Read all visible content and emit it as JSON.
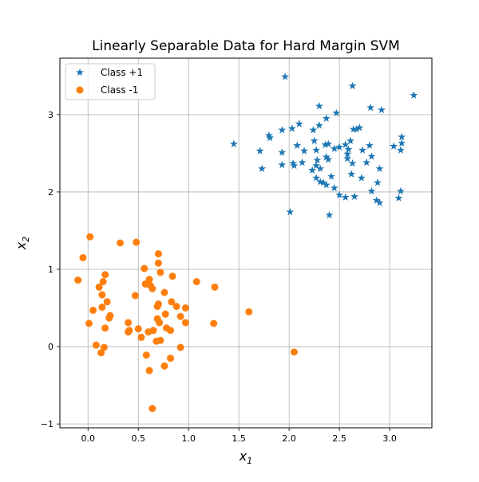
{
  "chart_data": {
    "type": "scatter",
    "title": "Linearly Separable Data for Hard Margin SVM",
    "xlabel": {
      "main": "x",
      "sub": "1"
    },
    "ylabel": {
      "main": "x",
      "sub": "2"
    },
    "xlim": [
      -0.28,
      3.42
    ],
    "ylim": [
      -1.05,
      3.73
    ],
    "xticks": [
      0.0,
      0.5,
      1.0,
      1.5,
      2.0,
      2.5,
      3.0
    ],
    "xtick_labels": [
      "0.0",
      "0.5",
      "1.0",
      "1.5",
      "2.0",
      "2.5",
      "3.0"
    ],
    "yticks": [
      -1,
      0,
      1,
      2,
      3
    ],
    "ytick_labels": [
      "−1",
      "0",
      "1",
      "2",
      "3"
    ],
    "grid": true,
    "legend_position": "top-left",
    "series": [
      {
        "name": "Class +1",
        "marker": "star",
        "color": "#1f77b4",
        "points": [
          [
            1.96,
            3.49
          ],
          [
            2.63,
            3.37
          ],
          [
            3.24,
            3.25
          ],
          [
            2.3,
            3.11
          ],
          [
            2.81,
            3.09
          ],
          [
            2.92,
            3.06
          ],
          [
            2.47,
            3.02
          ],
          [
            2.37,
            2.95
          ],
          [
            2.1,
            2.88
          ],
          [
            2.3,
            2.86
          ],
          [
            2.7,
            2.83
          ],
          [
            2.64,
            2.81
          ],
          [
            2.67,
            2.81
          ],
          [
            2.24,
            2.8
          ],
          [
            2.03,
            2.82
          ],
          [
            1.93,
            2.8
          ],
          [
            1.8,
            2.73
          ],
          [
            1.81,
            2.7
          ],
          [
            3.12,
            2.71
          ],
          [
            2.25,
            2.66
          ],
          [
            2.61,
            2.66
          ],
          [
            2.36,
            2.61
          ],
          [
            2.39,
            2.62
          ],
          [
            1.45,
            2.62
          ],
          [
            2.56,
            2.61
          ],
          [
            3.12,
            2.63
          ],
          [
            3.04,
            2.59
          ],
          [
            2.5,
            2.58
          ],
          [
            2.45,
            2.56
          ],
          [
            2.08,
            2.6
          ],
          [
            2.59,
            2.55
          ],
          [
            2.8,
            2.6
          ],
          [
            2.73,
            2.54
          ],
          [
            1.71,
            2.53
          ],
          [
            2.15,
            2.53
          ],
          [
            2.27,
            2.54
          ],
          [
            3.11,
            2.54
          ],
          [
            1.93,
            2.51
          ],
          [
            2.58,
            2.49
          ],
          [
            2.37,
            2.45
          ],
          [
            2.82,
            2.46
          ],
          [
            2.58,
            2.43
          ],
          [
            2.39,
            2.42
          ],
          [
            2.28,
            2.41
          ],
          [
            2.77,
            2.38
          ],
          [
            2.13,
            2.38
          ],
          [
            2.63,
            2.37
          ],
          [
            2.04,
            2.37
          ],
          [
            2.05,
            2.34
          ],
          [
            1.93,
            2.35
          ],
          [
            2.27,
            2.34
          ],
          [
            2.9,
            2.3
          ],
          [
            1.73,
            2.3
          ],
          [
            2.31,
            2.3
          ],
          [
            2.23,
            2.28
          ],
          [
            2.62,
            2.23
          ],
          [
            2.72,
            2.18
          ],
          [
            2.42,
            2.2
          ],
          [
            2.27,
            2.18
          ],
          [
            2.31,
            2.13
          ],
          [
            2.34,
            2.12
          ],
          [
            2.37,
            2.09
          ],
          [
            2.88,
            2.12
          ],
          [
            2.45,
            2.05
          ],
          [
            2.82,
            2.01
          ],
          [
            3.11,
            2.01
          ],
          [
            2.5,
            1.96
          ],
          [
            2.56,
            1.93
          ],
          [
            2.65,
            1.94
          ],
          [
            3.09,
            1.92
          ],
          [
            2.87,
            1.89
          ],
          [
            2.9,
            1.86
          ],
          [
            2.01,
            1.74
          ],
          [
            2.4,
            1.7
          ]
        ]
      },
      {
        "name": "Class -1",
        "marker": "circle",
        "color": "#ff7f0e",
        "points": [
          [
            0.02,
            1.42
          ],
          [
            0.48,
            1.35
          ],
          [
            0.32,
            1.34
          ],
          [
            -0.05,
            1.15
          ],
          [
            0.7,
            1.2
          ],
          [
            0.7,
            1.08
          ],
          [
            0.56,
            1.01
          ],
          [
            0.72,
            0.96
          ],
          [
            0.17,
            0.93
          ],
          [
            0.84,
            0.91
          ],
          [
            -0.1,
            0.86
          ],
          [
            0.61,
            0.87
          ],
          [
            0.15,
            0.84
          ],
          [
            1.08,
            0.84
          ],
          [
            0.57,
            0.81
          ],
          [
            0.62,
            0.79
          ],
          [
            0.11,
            0.77
          ],
          [
            0.64,
            0.75
          ],
          [
            1.26,
            0.77
          ],
          [
            0.76,
            0.7
          ],
          [
            0.14,
            0.67
          ],
          [
            0.47,
            0.66
          ],
          [
            0.19,
            0.58
          ],
          [
            0.83,
            0.58
          ],
          [
            0.7,
            0.55
          ],
          [
            0.69,
            0.52
          ],
          [
            0.88,
            0.52
          ],
          [
            0.14,
            0.51
          ],
          [
            0.97,
            0.5
          ],
          [
            0.05,
            0.47
          ],
          [
            1.6,
            0.45
          ],
          [
            0.77,
            0.42
          ],
          [
            0.92,
            0.39
          ],
          [
            0.22,
            0.4
          ],
          [
            0.21,
            0.37
          ],
          [
            0.69,
            0.36
          ],
          [
            0.71,
            0.31
          ],
          [
            0.4,
            0.31
          ],
          [
            0.97,
            0.31
          ],
          [
            1.25,
            0.3
          ],
          [
            0.01,
            0.3
          ],
          [
            0.17,
            0.24
          ],
          [
            0.78,
            0.24
          ],
          [
            0.5,
            0.23
          ],
          [
            0.41,
            0.21
          ],
          [
            0.82,
            0.21
          ],
          [
            0.65,
            0.21
          ],
          [
            0.4,
            0.19
          ],
          [
            0.6,
            0.19
          ],
          [
            0.53,
            0.12
          ],
          [
            0.68,
            0.07
          ],
          [
            0.72,
            0.08
          ],
          [
            0.08,
            0.02
          ],
          [
            0.16,
            -0.01
          ],
          [
            0.92,
            -0.01
          ],
          [
            0.13,
            -0.08
          ],
          [
            2.05,
            -0.07
          ],
          [
            0.58,
            -0.11
          ],
          [
            0.82,
            -0.15
          ],
          [
            0.76,
            -0.25
          ],
          [
            0.61,
            -0.31
          ],
          [
            0.64,
            -0.8
          ]
        ]
      }
    ]
  }
}
